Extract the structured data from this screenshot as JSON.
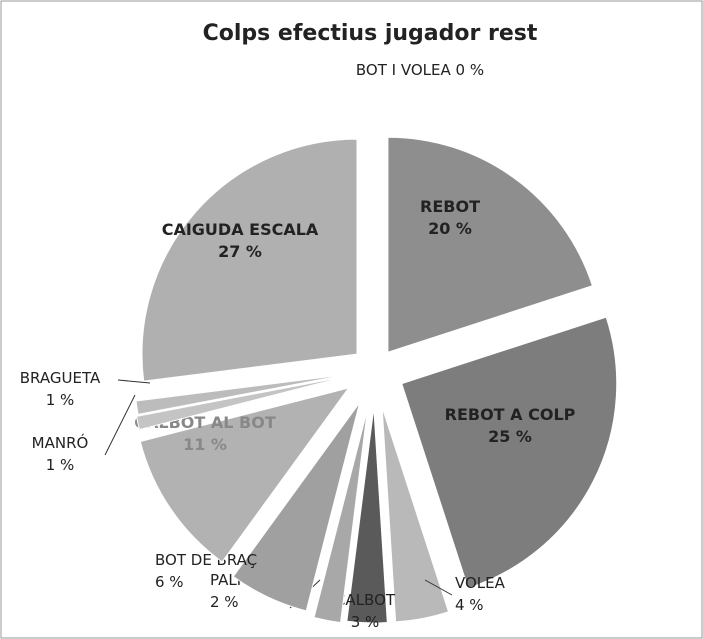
{
  "chart_data": {
    "type": "pie",
    "title": "Colps efectius jugador rest",
    "categories": [
      "BOT I VOLEA",
      "REBOT",
      "REBOT A COLP",
      "VOLEA",
      "CALBOT",
      "PALMA",
      "BOT DE BRAÇ",
      "CALBOT AL BOT",
      "MANRÓ",
      "BRAGUETA",
      "CAIGUDA ESCALA"
    ],
    "values": [
      0,
      20,
      25,
      4,
      3,
      2,
      6,
      11,
      1,
      1,
      27
    ],
    "value_labels": [
      "0 %",
      "20 %",
      "25 %",
      "4 %",
      "3 %",
      "2 %",
      "6 %",
      "11 %",
      "1 %",
      "1 %",
      "27 %"
    ],
    "colors": [
      "#9a9a9a",
      "#8e8e8e",
      "#7d7d7d",
      "#b9b9b9",
      "#5a5a5a",
      "#a8a8a8",
      "#a0a0a0",
      "#b2b2b2",
      "#c4c4c4",
      "#bcbcbc",
      "#b0b0b0"
    ]
  }
}
